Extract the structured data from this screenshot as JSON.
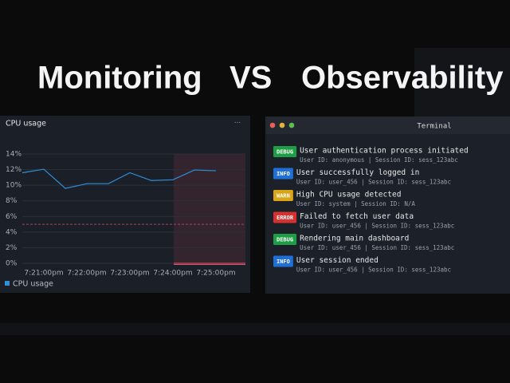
{
  "header": {
    "left": "Monitoring",
    "middle": "VS",
    "right": "Observability"
  },
  "chart_data": {
    "type": "line",
    "title": "CPU usage",
    "categories": [
      null,
      "7:21:00pm",
      null,
      "7:22:00pm",
      null,
      "7:23:00pm",
      null,
      "7:24:00pm",
      null,
      "7:25:00pm"
    ],
    "series": [
      {
        "name": "CPU usage",
        "color": "#2f8fd8",
        "values": [
          11.6,
          12.05,
          9.6,
          10.2,
          10.2,
          11.6,
          10.6,
          10.7,
          11.95,
          11.85
        ]
      }
    ],
    "ylim": [
      0,
      14
    ],
    "yticks": [
      {
        "value": 0,
        "label": "0%"
      },
      {
        "value": 2,
        "label": "2%"
      },
      {
        "value": 4,
        "label": "4%"
      },
      {
        "value": 6,
        "label": "6%"
      },
      {
        "value": 8,
        "label": "8%"
      },
      {
        "value": 10,
        "label": "10%"
      },
      {
        "value": 12,
        "label": "12%"
      },
      {
        "value": 14,
        "label": "14%"
      }
    ],
    "threshold": 5,
    "grid": true
  },
  "terminal": {
    "title": "Terminal",
    "logs": [
      {
        "level": "DEBUG",
        "message": "User authentication process initiated",
        "meta": "User ID: anonymous | Session ID: sess_123abc"
      },
      {
        "level": "INFO",
        "message": "User successfully logged in",
        "meta": "User ID: user_456 | Session ID: sess_123abc"
      },
      {
        "level": "WARN",
        "message": "High CPU usage detected",
        "meta": "User ID: system | Session ID: N/A"
      },
      {
        "level": "ERROR",
        "message": "Failed to fetch user data",
        "meta": "User ID: user_456 | Session ID: sess_123abc"
      },
      {
        "level": "DEBUG",
        "message": "Rendering main dashboard",
        "meta": "User ID: user_456 | Session ID: sess_123abc"
      },
      {
        "level": "INFO",
        "message": "User session ended",
        "meta": "User ID: user_456 | Session ID: sess_123abc"
      }
    ]
  }
}
